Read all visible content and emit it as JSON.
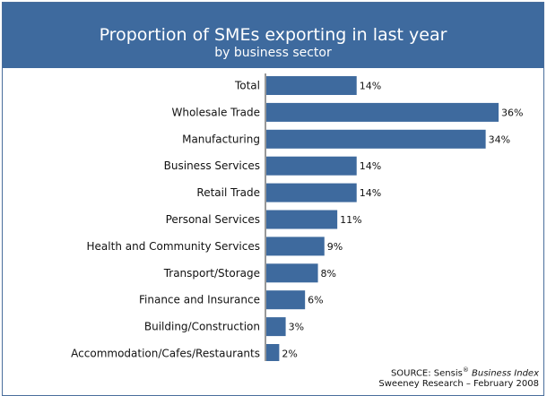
{
  "chart_data": {
    "type": "bar",
    "orientation": "horizontal",
    "title": "Proportion of SMEs exporting in last year",
    "subtitle": "by business sector",
    "categories": [
      "Total",
      "Wholesale Trade",
      "Manufacturing",
      "Business Services",
      "Retail Trade",
      "Personal Services",
      "Health and Community Services",
      "Transport/Storage",
      "Finance and Insurance",
      "Building/Construction",
      "Accommodation/Cafes/Restaurants"
    ],
    "values": [
      14,
      36,
      34,
      14,
      14,
      11,
      9,
      8,
      6,
      3,
      2
    ],
    "value_labels": [
      "14%",
      "36%",
      "34%",
      "14%",
      "14%",
      "11%",
      "9%",
      "8%",
      "6%",
      "3%",
      "2%"
    ],
    "bar_color": "#3e6a9e",
    "header_color": "#3e6a9e",
    "xlim": [
      0,
      36
    ],
    "grid": false,
    "legend": "none"
  },
  "source": {
    "prefix": "SOURCE: Sensis",
    "registered": "®",
    "publication": "Business Index",
    "line2": "Sweeney Research – February 2008"
  }
}
